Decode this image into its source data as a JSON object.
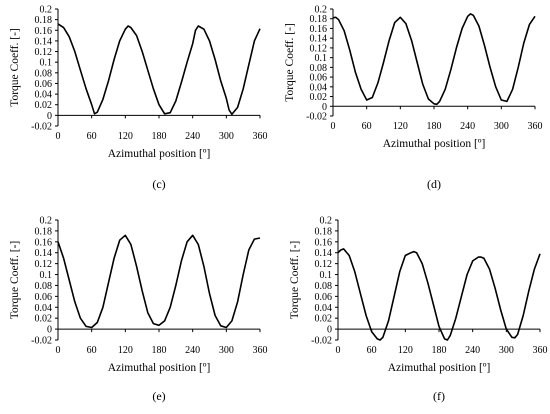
{
  "chart_data": [
    {
      "type": "line",
      "xlabel": "Azimuthal position [º]",
      "ylabel": "Torque Coeff. [-]",
      "caption": "(c)",
      "xlim": [
        0,
        360
      ],
      "ylim": [
        -0.02,
        0.2
      ],
      "xticks": [
        "0",
        "60",
        "120",
        "180",
        "240",
        "300",
        "360"
      ],
      "yticks": [
        "-0.02",
        "0",
        "0.02",
        "0.04",
        "0.06",
        "0.08",
        "0.1",
        "0.12",
        "0.14",
        "0.16",
        "0.18",
        "0.2"
      ],
      "grid": false,
      "series": [
        {
          "x": [
            0,
            10,
            20,
            30,
            40,
            50,
            60,
            65,
            70,
            80,
            90,
            100,
            110,
            120,
            125,
            130,
            140,
            150,
            160,
            170,
            180,
            190,
            200,
            210,
            220,
            230,
            240,
            245,
            250,
            260,
            270,
            280,
            290,
            300,
            305,
            310,
            320,
            330,
            340,
            350,
            360
          ],
          "y": [
            0.172,
            0.165,
            0.148,
            0.12,
            0.085,
            0.05,
            0.02,
            0.003,
            0.006,
            0.03,
            0.065,
            0.105,
            0.14,
            0.162,
            0.168,
            0.165,
            0.15,
            0.12,
            0.085,
            0.05,
            0.02,
            0.003,
            0.005,
            0.027,
            0.062,
            0.1,
            0.135,
            0.16,
            0.168,
            0.162,
            0.14,
            0.105,
            0.065,
            0.032,
            0.01,
            0.002,
            0.015,
            0.05,
            0.095,
            0.14,
            0.163
          ]
        }
      ]
    },
    {
      "type": "line",
      "xlabel": "Azimuthal position [º]",
      "ylabel": "Torque Coeff. [-]",
      "caption": "(d)",
      "xlim": [
        0,
        360
      ],
      "ylim": [
        -0.02,
        0.2
      ],
      "xticks": [
        "0",
        "60",
        "120",
        "180",
        "240",
        "300",
        "360"
      ],
      "yticks": [
        "-0.02",
        "0",
        "0.02",
        "0.04",
        "0.06",
        "0.08",
        "0.1",
        "0.12",
        "0.14",
        "0.16",
        "0.18",
        "0.2"
      ],
      "grid": false,
      "series": [
        {
          "x": [
            0,
            5,
            10,
            20,
            30,
            40,
            50,
            60,
            70,
            80,
            90,
            100,
            110,
            120,
            130,
            140,
            150,
            160,
            170,
            180,
            185,
            190,
            200,
            210,
            220,
            230,
            240,
            245,
            250,
            260,
            270,
            280,
            290,
            300,
            310,
            320,
            330,
            340,
            350,
            360
          ],
          "y": [
            0.182,
            0.183,
            0.178,
            0.155,
            0.115,
            0.07,
            0.035,
            0.013,
            0.018,
            0.048,
            0.09,
            0.135,
            0.172,
            0.183,
            0.17,
            0.135,
            0.09,
            0.045,
            0.015,
            0.005,
            0.004,
            0.01,
            0.035,
            0.075,
            0.12,
            0.16,
            0.185,
            0.19,
            0.187,
            0.165,
            0.125,
            0.08,
            0.04,
            0.013,
            0.01,
            0.035,
            0.08,
            0.13,
            0.168,
            0.185
          ]
        }
      ]
    },
    {
      "type": "line",
      "xlabel": "Azimuthal position [º]",
      "ylabel": "Torque Coeff. [-]",
      "caption": "(e)",
      "xlim": [
        0,
        360
      ],
      "ylim": [
        -0.02,
        0.2
      ],
      "xticks": [
        "0",
        "60",
        "120",
        "180",
        "240",
        "300",
        "360"
      ],
      "yticks": [
        "-0.02",
        "0",
        "0.02",
        "0.04",
        "0.06",
        "0.08",
        "0.1",
        "0.12",
        "0.14",
        "0.16",
        "0.18",
        "0.2"
      ],
      "grid": false,
      "series": [
        {
          "x": [
            0,
            10,
            20,
            30,
            40,
            50,
            60,
            70,
            80,
            90,
            100,
            110,
            120,
            130,
            140,
            150,
            160,
            170,
            180,
            190,
            200,
            210,
            220,
            230,
            240,
            250,
            260,
            270,
            280,
            290,
            300,
            310,
            320,
            330,
            340,
            350,
            360
          ],
          "y": [
            0.16,
            0.13,
            0.09,
            0.05,
            0.02,
            0.005,
            0.003,
            0.012,
            0.04,
            0.085,
            0.13,
            0.163,
            0.172,
            0.155,
            0.115,
            0.07,
            0.03,
            0.01,
            0.007,
            0.015,
            0.04,
            0.08,
            0.125,
            0.16,
            0.172,
            0.155,
            0.115,
            0.065,
            0.025,
            0.006,
            0.003,
            0.015,
            0.05,
            0.1,
            0.145,
            0.165,
            0.167
          ]
        }
      ]
    },
    {
      "type": "line",
      "xlabel": "Azimuthal position [º]",
      "ylabel": "Torque Coeff. [-]",
      "caption": "(f)",
      "xlim": [
        0,
        360
      ],
      "ylim": [
        -0.02,
        0.2
      ],
      "xticks": [
        "0",
        "60",
        "120",
        "180",
        "240",
        "300",
        "360"
      ],
      "yticks": [
        "-0.02",
        "0",
        "0.02",
        "0.04",
        "0.06",
        "0.08",
        "0.1",
        "0.12",
        "0.14",
        "0.16",
        "0.18",
        "0.2"
      ],
      "grid": false,
      "series": [
        {
          "x": [
            0,
            5,
            10,
            20,
            30,
            40,
            50,
            60,
            70,
            75,
            80,
            90,
            100,
            110,
            120,
            130,
            135,
            140,
            150,
            160,
            170,
            180,
            190,
            195,
            200,
            210,
            220,
            230,
            240,
            250,
            255,
            260,
            270,
            280,
            290,
            300,
            310,
            315,
            320,
            330,
            340,
            350,
            360
          ],
          "y": [
            0.14,
            0.145,
            0.147,
            0.135,
            0.105,
            0.065,
            0.025,
            -0.005,
            -0.018,
            -0.02,
            -0.015,
            0.015,
            0.06,
            0.105,
            0.135,
            0.14,
            0.142,
            0.14,
            0.12,
            0.085,
            0.045,
            0.005,
            -0.018,
            -0.02,
            -0.012,
            0.02,
            0.06,
            0.1,
            0.125,
            0.132,
            0.132,
            0.13,
            0.11,
            0.075,
            0.035,
            0.0,
            -0.015,
            -0.016,
            -0.01,
            0.025,
            0.07,
            0.11,
            0.138
          ]
        }
      ]
    }
  ]
}
